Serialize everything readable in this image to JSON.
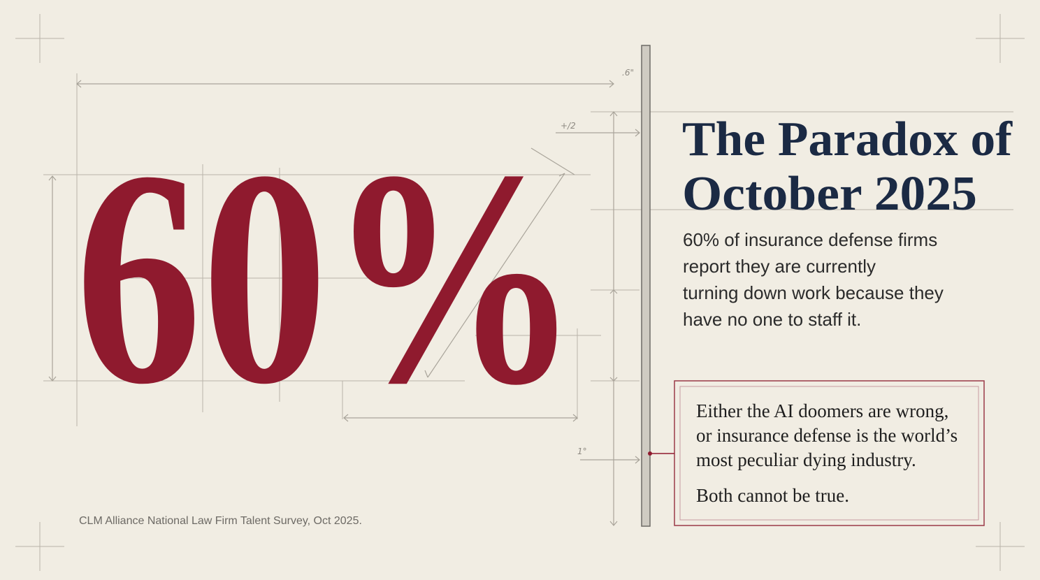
{
  "hero": {
    "figure": "60%"
  },
  "title": [
    "The Paradox of",
    "October 2025"
  ],
  "body": [
    "60% of insurance defense firms",
    "report they are currently",
    "turning down work because they",
    "have no one to staff it."
  ],
  "callout": {
    "lines": [
      "Either the AI doomers are wrong,",
      "or insurance defense is the world’s",
      "most peculiar dying industry."
    ],
    "conclusion": "Both cannot be true."
  },
  "source": "CLM Alliance National Law Firm Talent Survey, Oct 2025.",
  "annotations": [
    ".6\"",
    "+/2",
    "1°"
  ]
}
